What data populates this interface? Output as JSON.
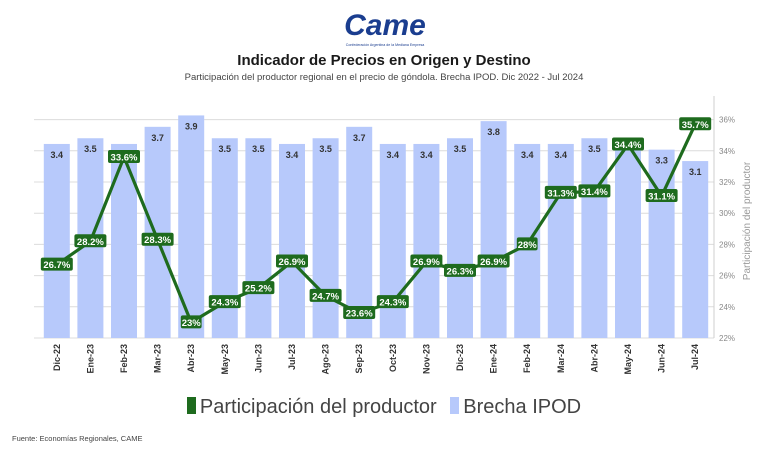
{
  "header": {
    "logo_text": "Came",
    "logo_tagline": "Confederación Argentina de la Mediana Empresa",
    "title": "Indicador de Precios en Origen y Destino",
    "subtitle": "Participación del productor regional en el precio de góndola. Brecha IPOD. Dic 2022 - Jul 2024"
  },
  "footer": {
    "source": "Fuente: Economías Regionales, CAME"
  },
  "chart_data": {
    "type": "bar",
    "categories": [
      "Dic-22",
      "Ene-23",
      "Feb-23",
      "Mar-23",
      "Abr-23",
      "May-23",
      "Jun-23",
      "Jul-23",
      "Ago-23",
      "Sep-23",
      "Oct-23",
      "Nov-23",
      "Dic-23",
      "Ene-24",
      "Feb-24",
      "Mar-24",
      "Abr-24",
      "May-24",
      "Jun-24",
      "Jul-24"
    ],
    "series": [
      {
        "name": "Brecha IPOD",
        "type": "bar",
        "color": "#b7c9fb",
        "values": [
          3.4,
          3.5,
          3.4,
          3.7,
          3.9,
          3.5,
          3.5,
          3.4,
          3.5,
          3.7,
          3.4,
          3.4,
          3.5,
          3.8,
          3.4,
          3.4,
          3.5,
          3.5,
          3.3,
          3.1
        ],
        "labels": [
          "3.4",
          "3.5",
          "",
          "3.7",
          "3.9",
          "3.5",
          "3.5",
          "3.4",
          "3.5",
          "3.7",
          "3.4",
          "3.4",
          "3.5",
          "3.8",
          "3.4",
          "3.4",
          "3.5",
          "",
          "3.3",
          "3.1"
        ]
      },
      {
        "name": "Participación del productor",
        "type": "line",
        "color": "#1e6b1e",
        "values": [
          26.7,
          28.2,
          33.6,
          28.3,
          23.0,
          24.3,
          25.2,
          26.9,
          24.7,
          23.6,
          24.3,
          26.9,
          26.3,
          26.9,
          28.0,
          31.3,
          31.4,
          34.4,
          31.1,
          35.7
        ],
        "labels": [
          "26.7%",
          "28.2%",
          "33.6%",
          "28.3%",
          "23%",
          "24.3%",
          "25.2%",
          "26.9%",
          "24.7%",
          "23.6%",
          "24.3%",
          "26.9%",
          "26.3%",
          "26.9%",
          "28%",
          "31.3%",
          "31.4%",
          "34.4%",
          "31.1%",
          "35.7%"
        ]
      }
    ],
    "y2_axis": {
      "label": "Participación del productor",
      "ylim": [
        22,
        37
      ],
      "ticks": [
        "22%",
        "24%",
        "26%",
        "28%",
        "30%",
        "32%",
        "34%",
        "36%"
      ]
    },
    "bar_axis": {
      "ylim": [
        0,
        4.1
      ],
      "visible": false
    },
    "grid": true,
    "legend": "bottom"
  }
}
